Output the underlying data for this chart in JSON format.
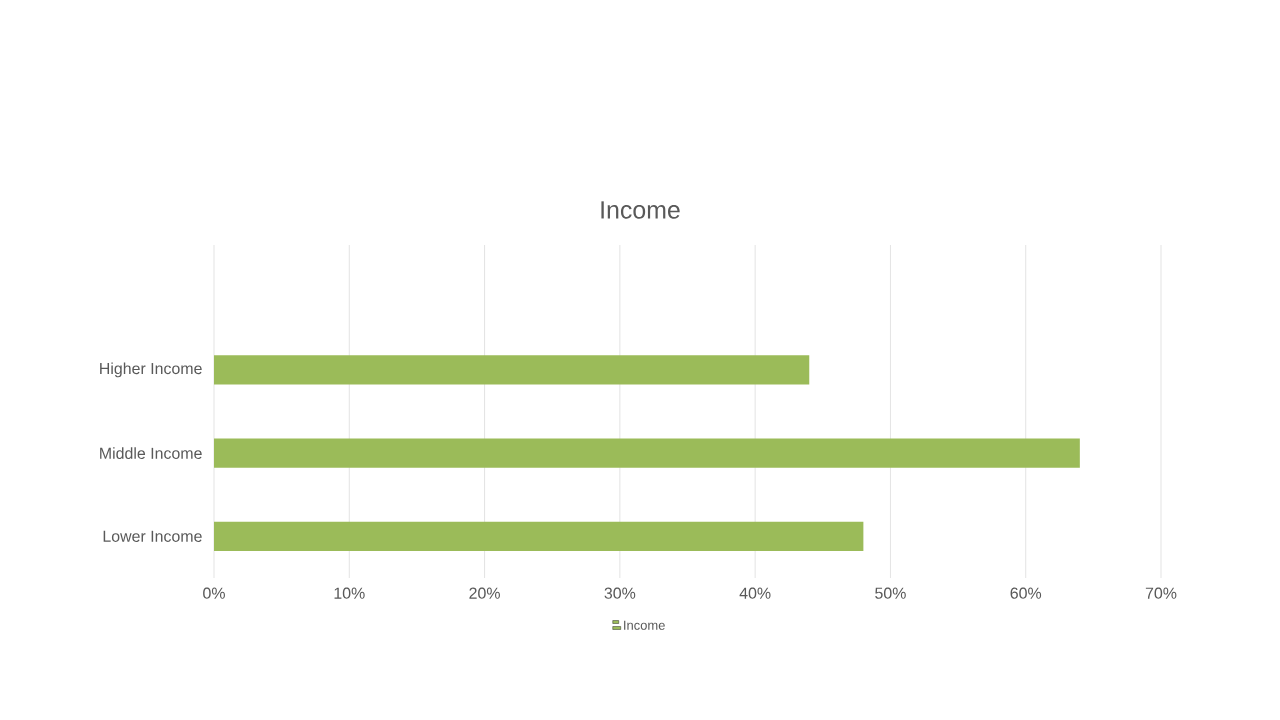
{
  "chart_data": {
    "type": "bar",
    "orientation": "horizontal",
    "title": "Income",
    "categories": [
      "Higher Income",
      "Middle Income",
      "Lower Income"
    ],
    "series": [
      {
        "name": "Income",
        "color": "#9bbb59",
        "values": [
          44,
          64,
          48
        ]
      }
    ],
    "xlim": [
      0,
      70
    ],
    "xticks": [
      {
        "value": 0,
        "label": "0%"
      },
      {
        "value": 10,
        "label": "10%"
      },
      {
        "value": 20,
        "label": "20%"
      },
      {
        "value": 30,
        "label": "30%"
      },
      {
        "value": 40,
        "label": "40%"
      },
      {
        "value": 50,
        "label": "50%"
      },
      {
        "value": 60,
        "label": "60%"
      },
      {
        "value": 70,
        "label": "70%"
      }
    ],
    "grid": "x",
    "legend": "bottom"
  }
}
